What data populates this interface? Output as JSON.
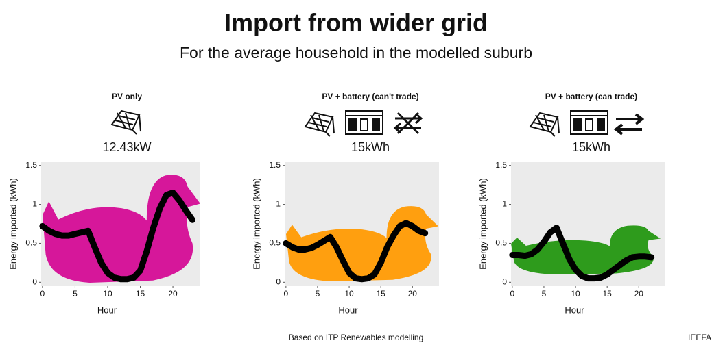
{
  "title": "Import from wider grid",
  "subtitle": "For the average household in the modelled suburb",
  "source": "Based on ITP Renewables modelling",
  "brand": "IEEFA",
  "chart_data": [
    {
      "type": "line",
      "title": "PV only",
      "annotation": "12.43kW",
      "xlabel": "Hour",
      "ylabel": "Energy imported (kWh)",
      "x": [
        0,
        1,
        2,
        3,
        4,
        5,
        6,
        7,
        8,
        9,
        10,
        11,
        12,
        13,
        14,
        15,
        16,
        17,
        18,
        19,
        20,
        21,
        22,
        23
      ],
      "values": [
        0.72,
        0.66,
        0.62,
        0.6,
        0.6,
        0.62,
        0.64,
        0.66,
        0.45,
        0.25,
        0.12,
        0.06,
        0.04,
        0.04,
        0.06,
        0.15,
        0.4,
        0.7,
        0.95,
        1.12,
        1.15,
        1.05,
        0.92,
        0.8
      ],
      "color": "#000000",
      "area_color": "#d6179a",
      "xlim": [
        -0.2,
        24.2
      ],
      "ylim": [
        -0.05,
        1.55
      ],
      "xticks": [
        0,
        5,
        10,
        15,
        20
      ],
      "yticks": [
        0,
        0.5,
        1,
        1.5
      ]
    },
    {
      "type": "line",
      "title": "PV + battery (can't trade)",
      "annotation": "15kWh",
      "xlabel": "Hour",
      "ylabel": "Energy imported (kWh)",
      "x": [
        0,
        1,
        2,
        3,
        4,
        5,
        6,
        7,
        8,
        9,
        10,
        11,
        12,
        13,
        14,
        15,
        16,
        17,
        18,
        19,
        20,
        21,
        22
      ],
      "values": [
        0.5,
        0.45,
        0.42,
        0.42,
        0.44,
        0.48,
        0.53,
        0.58,
        0.45,
        0.28,
        0.12,
        0.05,
        0.04,
        0.05,
        0.1,
        0.25,
        0.45,
        0.6,
        0.72,
        0.76,
        0.72,
        0.66,
        0.63
      ],
      "color": "#000000",
      "area_color": "#ff9f0f",
      "xlim": [
        -0.2,
        24.2
      ],
      "ylim": [
        -0.05,
        1.55
      ],
      "xticks": [
        0,
        5,
        10,
        15,
        20
      ],
      "yticks": [
        0,
        0.5,
        1,
        1.5
      ]
    },
    {
      "type": "line",
      "title": "PV + battery (can trade)",
      "annotation": "15kWh",
      "xlabel": "Hour",
      "ylabel": "Energy imported (kWh)",
      "x": [
        0,
        1,
        2,
        3,
        4,
        5,
        6,
        7,
        8,
        9,
        10,
        11,
        12,
        13,
        14,
        15,
        16,
        17,
        18,
        19,
        20,
        21,
        22
      ],
      "values": [
        0.35,
        0.35,
        0.34,
        0.36,
        0.42,
        0.52,
        0.64,
        0.7,
        0.5,
        0.3,
        0.16,
        0.08,
        0.05,
        0.05,
        0.06,
        0.1,
        0.16,
        0.22,
        0.28,
        0.32,
        0.33,
        0.33,
        0.32
      ],
      "color": "#000000",
      "area_color": "#2e9b1c",
      "xlim": [
        -0.2,
        24.2
      ],
      "ylim": [
        -0.05,
        1.55
      ],
      "xticks": [
        0,
        5,
        10,
        15,
        20
      ],
      "yticks": [
        0,
        0.5,
        1,
        1.5
      ]
    }
  ]
}
